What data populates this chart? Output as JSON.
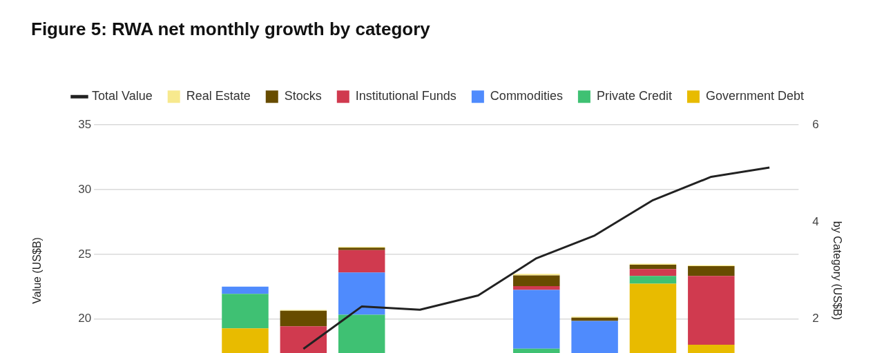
{
  "chart_data": {
    "type": "bar",
    "title": "Figure 5: RWA net monthly growth by category",
    "ylabel": "Value (US$B)",
    "y2label": "by Category (US$B)",
    "categories": [
      null,
      null,
      null,
      null,
      null,
      null,
      null,
      null,
      null,
      null,
      null,
      null
    ],
    "stacked": true,
    "legend": "top",
    "grid": "y",
    "ylim": [
      12.5,
      35
    ],
    "yticks": [
      20,
      25,
      30,
      35
    ],
    "y2lim": [
      0,
      6
    ],
    "y2ticks": [
      2,
      4,
      6
    ],
    "series": [
      {
        "name": "Total Value",
        "type": "line",
        "color": "#222222",
        "marker": "none",
        "values": [
          null,
          null,
          null,
          17.7,
          20.97,
          20.72,
          21.83,
          24.7,
          26.46,
          29.19,
          30.99,
          31.71
        ]
      },
      {
        "name": "Government Debt",
        "axis": "y2",
        "color": "#e8bb00",
        "values": [
          null,
          null,
          1.81,
          null,
          null,
          null,
          null,
          null,
          null,
          2.73,
          1.47,
          null
        ]
      },
      {
        "name": "Private Credit",
        "axis": "y2",
        "color": "#3fc173",
        "values": [
          null,
          null,
          0.71,
          null,
          2.09,
          null,
          null,
          1.39,
          null,
          0.16,
          null,
          null
        ]
      },
      {
        "name": "Commodities",
        "axis": "y2",
        "color": "#4f8bfd",
        "values": [
          null,
          null,
          0.15,
          null,
          0.87,
          null,
          null,
          1.21,
          1.96,
          null,
          null,
          null
        ]
      },
      {
        "name": "Institutional Funds",
        "axis": "y2",
        "color": "#d03a4f",
        "values": [
          null,
          null,
          null,
          1.85,
          0.46,
          null,
          null,
          0.08,
          null,
          0.14,
          1.42,
          null
        ]
      },
      {
        "name": "Stocks",
        "axis": "y2",
        "color": "#674c00",
        "values": [
          null,
          null,
          null,
          0.32,
          0.05,
          null,
          null,
          0.22,
          0.07,
          0.09,
          0.2,
          null
        ]
      },
      {
        "name": "Real Estate",
        "axis": "y2",
        "color": "#f7e98e",
        "values": [
          null,
          null,
          null,
          0.02,
          0.02,
          null,
          null,
          0.03,
          0.02,
          0.02,
          0.02,
          null
        ]
      }
    ]
  }
}
